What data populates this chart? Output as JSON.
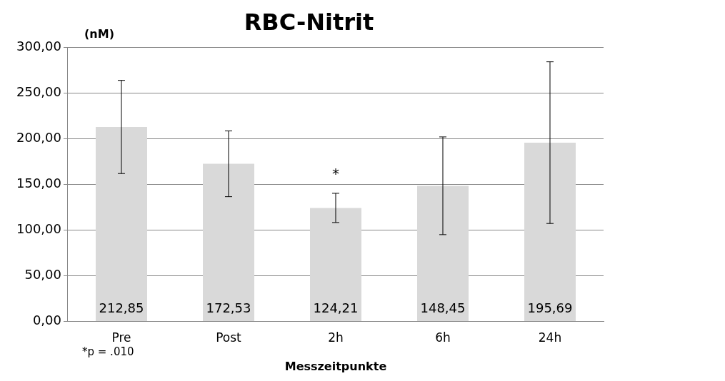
{
  "chart_data": {
    "type": "bar",
    "title": "RBC-Nitrit",
    "ylabel": "(nM)",
    "xlabel": "Messzeitpunkte",
    "categories": [
      "Pre",
      "Post",
      "2h",
      "6h",
      "24h"
    ],
    "values": [
      212.85,
      172.53,
      124.21,
      148.45,
      195.69
    ],
    "errors": [
      51,
      36,
      16,
      53.5,
      88.5
    ],
    "value_labels": [
      "212,85",
      "172,53",
      "124,21",
      "148,45",
      "195,69"
    ],
    "color": "#d9d9d9",
    "ylim": [
      0,
      300
    ],
    "yticks": [
      {
        "value": 0,
        "label": "0,00"
      },
      {
        "value": 50,
        "label": "50,00"
      },
      {
        "value": 100,
        "label": "100,00"
      },
      {
        "value": 150,
        "label": "150,00"
      },
      {
        "value": 200,
        "label": "200,00"
      },
      {
        "value": 250,
        "label": "250,00"
      },
      {
        "value": 300,
        "label": "300,00"
      }
    ],
    "grid": "y",
    "legend": false,
    "annotations": [
      {
        "text": "*",
        "x": "2h",
        "y": 140.21
      },
      "*p = .010"
    ]
  }
}
